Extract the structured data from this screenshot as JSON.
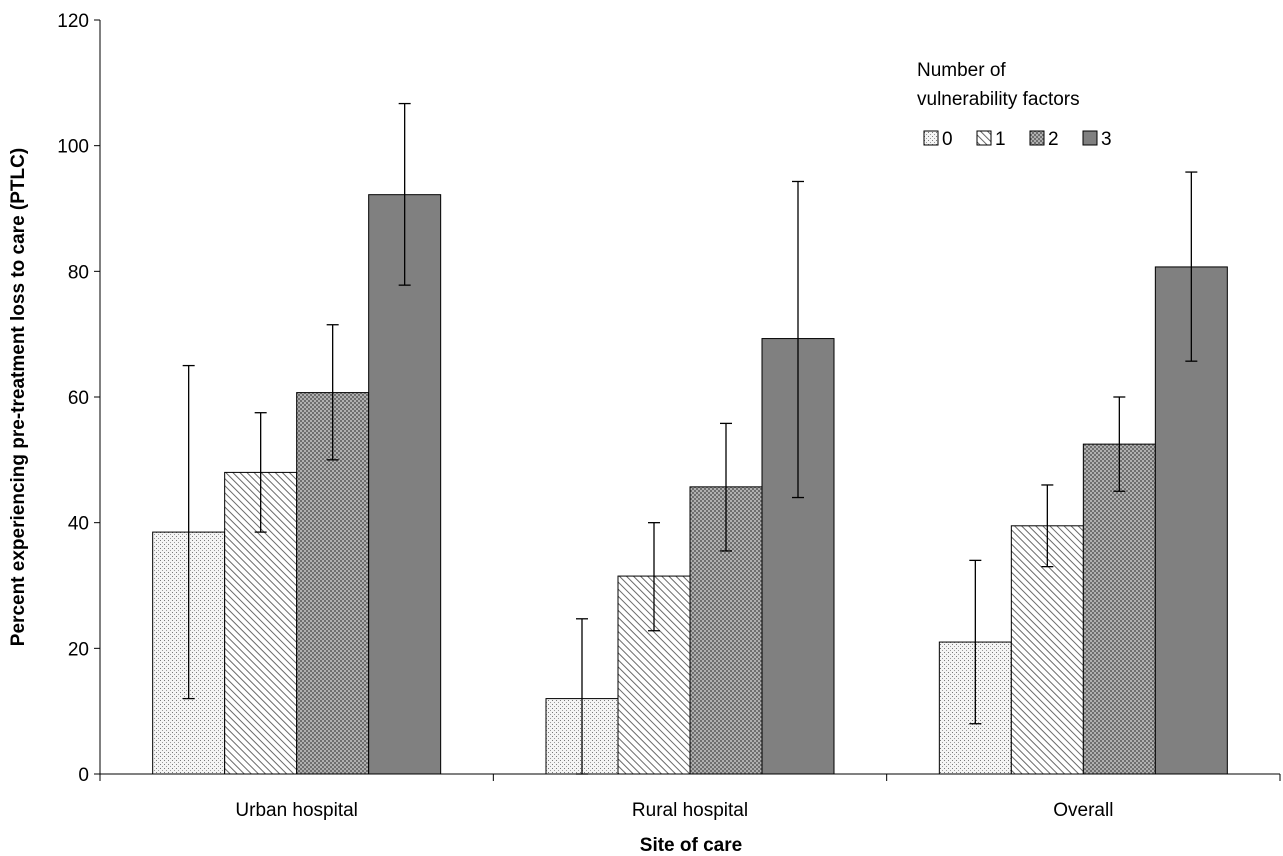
{
  "chart_data": {
    "type": "bar",
    "title": "",
    "xlabel": "Site of care",
    "ylabel": "Percent experiencing pre-treatment loss to care (PTLC)",
    "ylim": [
      0,
      120
    ],
    "yticks": [
      0,
      20,
      40,
      60,
      80,
      100,
      120
    ],
    "categories": [
      "Urban hospital",
      "Rural hospital",
      "Overall"
    ],
    "legend": {
      "title_lines": [
        "Number of",
        "vulnerability factors"
      ],
      "placement": "top-right"
    },
    "series": [
      {
        "name": "0",
        "values": [
          38.5,
          12,
          21
        ],
        "error_low": [
          12,
          0,
          8
        ],
        "error_high": [
          65,
          24.7,
          34
        ],
        "color": "#f2f2f2",
        "pattern": "dots"
      },
      {
        "name": "1",
        "values": [
          48,
          31.5,
          39.5
        ],
        "error_low": [
          38.5,
          22.8,
          33
        ],
        "error_high": [
          57.5,
          40,
          46
        ],
        "color": "#ffffff",
        "pattern": "diagonal"
      },
      {
        "name": "2",
        "values": [
          60.7,
          45.7,
          52.5
        ],
        "error_low": [
          50,
          35.5,
          45
        ],
        "error_high": [
          71.5,
          55.8,
          60
        ],
        "color": "#a6a6a6",
        "pattern": "crosshatch"
      },
      {
        "name": "3",
        "values": [
          92.2,
          69.3,
          80.7
        ],
        "error_low": [
          77.8,
          44,
          65.7
        ],
        "error_high": [
          106.7,
          94.3,
          95.8
        ],
        "color": "#808080",
        "pattern": "solid"
      }
    ],
    "grid": false
  }
}
